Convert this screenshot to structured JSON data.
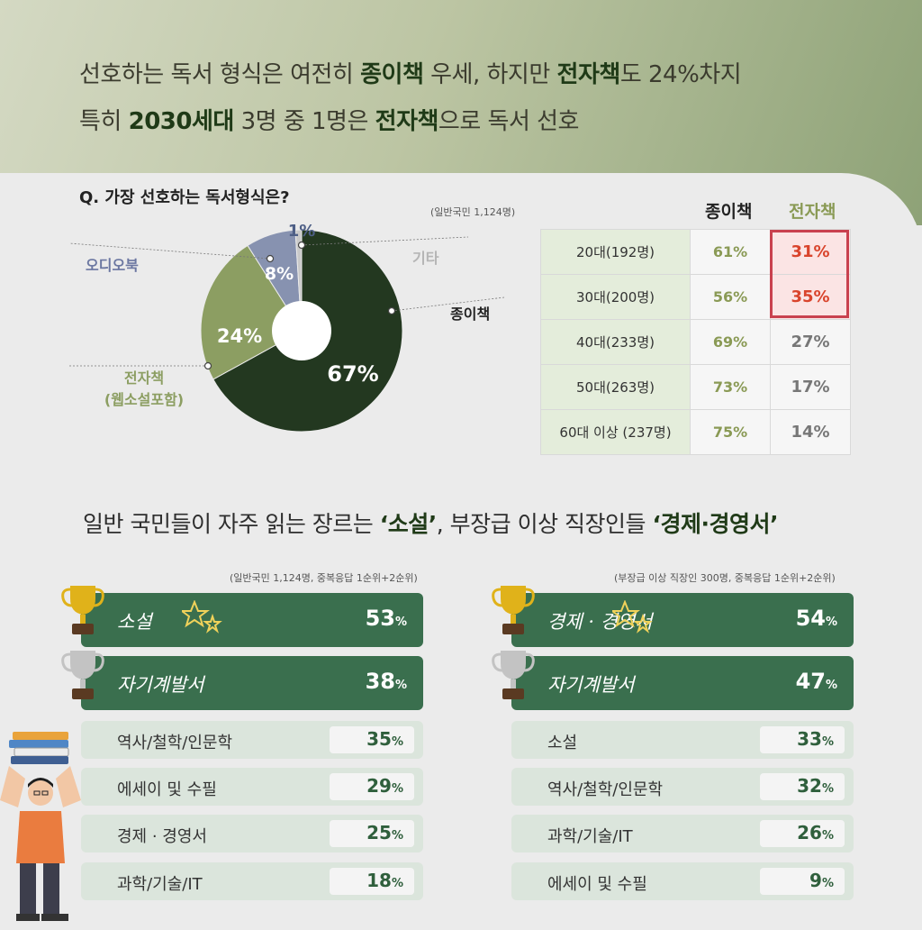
{
  "headline": {
    "line1": [
      {
        "t": "선호하는 독서 형식은 여전히 ",
        "b": false
      },
      {
        "t": "종이책",
        "b": true
      },
      {
        "t": " 우세, 하지만 ",
        "b": false
      },
      {
        "t": "전자책",
        "b": true
      },
      {
        "t": "도 24%차지",
        "b": false
      }
    ],
    "line2": [
      {
        "t": "특히 ",
        "b": false
      },
      {
        "t": "2030세대",
        "b": true
      },
      {
        "t": " 3명 중 1명은 ",
        "b": false
      },
      {
        "t": "전자책",
        "b": true
      },
      {
        "t": "으로 독서 선호",
        "b": false
      }
    ]
  },
  "pie_section": {
    "question": "Q. 가장 선호하는 독서형식은?",
    "sample_note": "(일반국민 1,124명)"
  },
  "age_table": {
    "col_paper": "종이책",
    "col_ebook": "전자책",
    "rows": [
      {
        "age": "20대(192명)",
        "paper": "61%",
        "ebook": "31%",
        "highlight": true
      },
      {
        "age": "30대(200명)",
        "paper": "56%",
        "ebook": "35%",
        "highlight": true
      },
      {
        "age": "40대(233명)",
        "paper": "69%",
        "ebook": "27%",
        "highlight": false
      },
      {
        "age": "50대(263명)",
        "paper": "73%",
        "ebook": "17%",
        "highlight": false
      },
      {
        "age": "60대 이상 (237명)",
        "paper": "75%",
        "ebook": "14%",
        "highlight": false
      }
    ]
  },
  "genre_headline": [
    {
      "t": "일반 국민들이 자주 읽는 장르는 ",
      "b": false
    },
    {
      "t": "‘소설’",
      "b": true
    },
    {
      "t": ", 부장급 이상 직장인들 ",
      "b": false
    },
    {
      "t": "‘경제·경영서’",
      "b": true
    }
  ],
  "chart_data": [
    {
      "type": "pie",
      "title": "Q. 가장 선호하는 독서형식은?",
      "slices": [
        {
          "label": "종이책",
          "value": 67,
          "display": "67%",
          "color": "#233820"
        },
        {
          "label": "전자책 (웹소설포함)",
          "value": 24,
          "display": "24%",
          "color": "#8c9e62"
        },
        {
          "label": "오디오북",
          "value": 8,
          "display": "8%",
          "color": "#8792b0"
        },
        {
          "label": "기타",
          "value": 1,
          "display": "1%",
          "color": "#c9c9c9"
        }
      ]
    },
    {
      "type": "bar",
      "note": "(일반국민 1,124명, 중복응답 1순위+2순위)",
      "categories": [
        "소설",
        "자기계발서",
        "역사/철학/인문학",
        "에세이 및 수필",
        "경제 · 경영서",
        "과학/기술/IT"
      ],
      "values": [
        53,
        38,
        35,
        29,
        25,
        18
      ],
      "unit": "%"
    },
    {
      "type": "bar",
      "note": "(부장급 이상 직장인 300명, 중복응답 1순위+2순위)",
      "categories": [
        "경제 · 경영서",
        "자기계발서",
        "소설",
        "역사/철학/인문학",
        "과학/기술/IT",
        "에세이 및 수필"
      ],
      "values": [
        54,
        47,
        33,
        32,
        26,
        9
      ],
      "unit": "%"
    }
  ],
  "colors": {
    "top_bar": "#3a6f4e",
    "rest_bar": "#dbe5dc",
    "gold": "#e0b21a",
    "silver": "#c3c3c3"
  }
}
